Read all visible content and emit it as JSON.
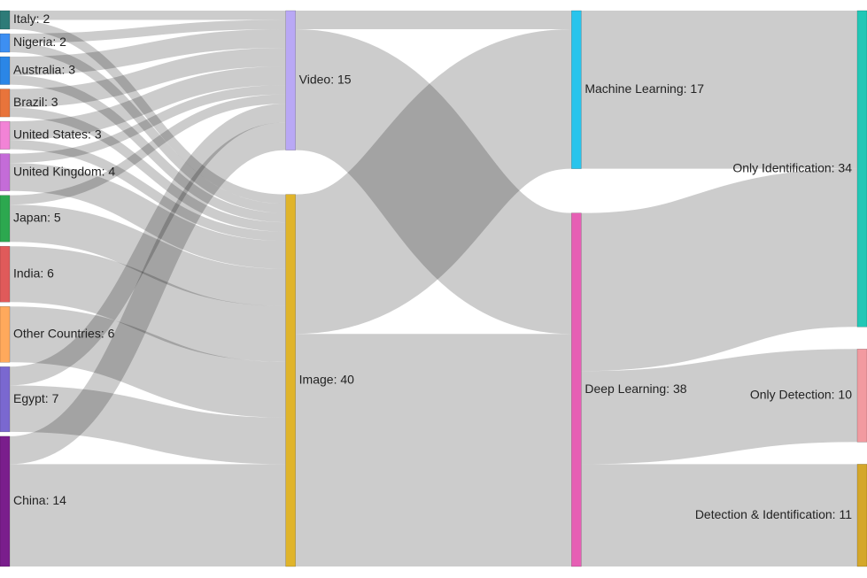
{
  "chart_data": {
    "type": "sankey",
    "nodes": [
      {
        "label": "Italy: 2",
        "value": 2,
        "color": "#2e7b78"
      },
      {
        "label": "Nigeria: 2",
        "value": 2,
        "color": "#3d8ff2"
      },
      {
        "label": "Australia: 3",
        "value": 3,
        "color": "#2b86e6"
      },
      {
        "label": "Brazil: 3",
        "value": 3,
        "color": "#e8743b"
      },
      {
        "label": "United States: 3",
        "value": 3,
        "color": "#f283d6"
      },
      {
        "label": "United Kingdom: 4",
        "value": 4,
        "color": "#c46cd8"
      },
      {
        "label": "Japan: 5",
        "value": 5,
        "color": "#2ca84f"
      },
      {
        "label": "India: 6",
        "value": 6,
        "color": "#e05a5a"
      },
      {
        "label": "Other Countries: 6",
        "value": 6,
        "color": "#ffa95c"
      },
      {
        "label": "Egypt: 7",
        "value": 7,
        "color": "#7a68d0"
      },
      {
        "label": "China: 14",
        "value": 14,
        "color": "#7a1e8c"
      },
      {
        "label": "Video: 15",
        "value": 15,
        "color": "#b9a8f5"
      },
      {
        "label": "Image: 40",
        "value": 40,
        "color": "#e0b42a"
      },
      {
        "label": "Machine Learning: 17",
        "value": 17,
        "color": "#28c4ec"
      },
      {
        "label": "Deep Learning: 38",
        "value": 38,
        "color": "#e65fb4"
      },
      {
        "label": "Only Identification: 34",
        "value": 34,
        "color": "#22c7b6"
      },
      {
        "label": "Only Detection: 10",
        "value": 10,
        "color": "#f29aa0"
      },
      {
        "label": "Detection & Identification: 11",
        "value": 11,
        "color": "#d4a72a"
      }
    ],
    "links": [
      {
        "source": 0,
        "target": 11,
        "value": 1
      },
      {
        "source": 0,
        "target": 12,
        "value": 1
      },
      {
        "source": 1,
        "target": 11,
        "value": 1
      },
      {
        "source": 1,
        "target": 12,
        "value": 1
      },
      {
        "source": 2,
        "target": 11,
        "value": 2
      },
      {
        "source": 2,
        "target": 12,
        "value": 1
      },
      {
        "source": 3,
        "target": 11,
        "value": 2
      },
      {
        "source": 3,
        "target": 12,
        "value": 1
      },
      {
        "source": 4,
        "target": 11,
        "value": 2
      },
      {
        "source": 4,
        "target": 12,
        "value": 1
      },
      {
        "source": 5,
        "target": 11,
        "value": 1
      },
      {
        "source": 5,
        "target": 12,
        "value": 3
      },
      {
        "source": 6,
        "target": 11,
        "value": 1
      },
      {
        "source": 6,
        "target": 12,
        "value": 4
      },
      {
        "source": 7,
        "target": 12,
        "value": 6
      },
      {
        "source": 8,
        "target": 12,
        "value": 6
      },
      {
        "source": 9,
        "target": 11,
        "value": 2
      },
      {
        "source": 9,
        "target": 12,
        "value": 5
      },
      {
        "source": 10,
        "target": 11,
        "value": 3
      },
      {
        "source": 10,
        "target": 12,
        "value": 11
      },
      {
        "source": 11,
        "target": 13,
        "value": 2
      },
      {
        "source": 11,
        "target": 14,
        "value": 13
      },
      {
        "source": 12,
        "target": 13,
        "value": 15
      },
      {
        "source": 12,
        "target": 14,
        "value": 25
      },
      {
        "source": 13,
        "target": 15,
        "value": 17
      },
      {
        "source": 14,
        "target": 15,
        "value": 17
      },
      {
        "source": 14,
        "target": 16,
        "value": 10
      },
      {
        "source": 14,
        "target": 17,
        "value": 11
      }
    ]
  }
}
